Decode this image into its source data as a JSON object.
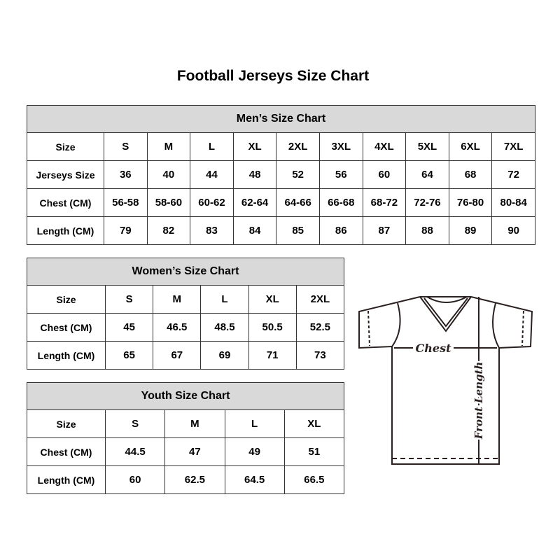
{
  "title": "Football Jerseys Size Chart",
  "men": {
    "heading": "Men’s Size Chart",
    "rows": [
      [
        "Size",
        "S",
        "M",
        "L",
        "XL",
        "2XL",
        "3XL",
        "4XL",
        "5XL",
        "6XL",
        "7XL"
      ],
      [
        "Jerseys Size",
        "36",
        "40",
        "44",
        "48",
        "52",
        "56",
        "60",
        "64",
        "68",
        "72"
      ],
      [
        "Chest (CM)",
        "56-58",
        "58-60",
        "60-62",
        "62-64",
        "64-66",
        "66-68",
        "68-72",
        "72-76",
        "76-80",
        "80-84"
      ],
      [
        "Length (CM)",
        "79",
        "82",
        "83",
        "84",
        "85",
        "86",
        "87",
        "88",
        "89",
        "90"
      ]
    ]
  },
  "women": {
    "heading": "Women’s Size Chart",
    "rows": [
      [
        "Size",
        "S",
        "M",
        "L",
        "XL",
        "2XL"
      ],
      [
        "Chest (CM)",
        "45",
        "46.5",
        "48.5",
        "50.5",
        "52.5"
      ],
      [
        "Length (CM)",
        "65",
        "67",
        "69",
        "71",
        "73"
      ]
    ]
  },
  "youth": {
    "heading": "Youth Size Chart",
    "rows": [
      [
        "Size",
        "S",
        "M",
        "L",
        "XL"
      ],
      [
        "Chest (CM)",
        "44.5",
        "47",
        "49",
        "51"
      ],
      [
        "Length (CM)",
        "60",
        "62.5",
        "64.5",
        "66.5"
      ]
    ]
  },
  "diagram": {
    "chest_label": "Chest",
    "length_label": "Front Length"
  },
  "colors": {
    "header_bg": "#d9d9d9",
    "border": "#333333",
    "diagram_line": "#2a2020"
  }
}
